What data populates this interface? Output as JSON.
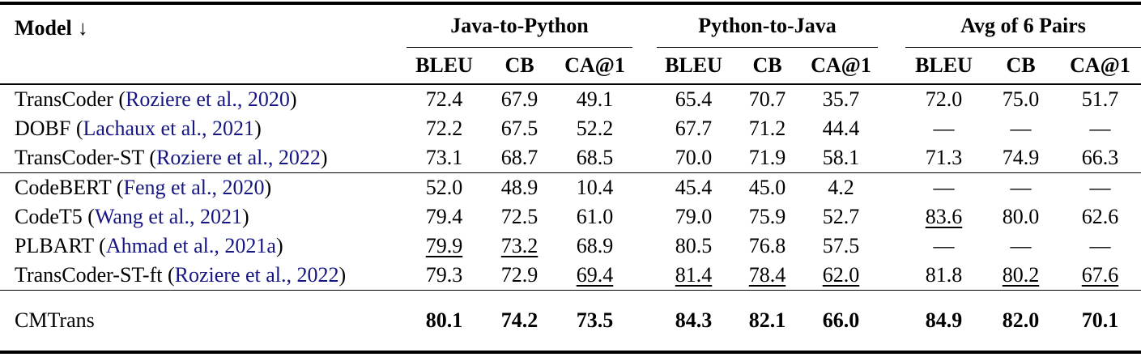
{
  "table": {
    "model_header": {
      "label": "Model",
      "arrow": "↓"
    },
    "groups": [
      {
        "label": "Java-to-Python",
        "metrics": [
          "BLEU",
          "CB",
          "CA@1"
        ]
      },
      {
        "label": "Python-to-Java",
        "metrics": [
          "BLEU",
          "CB",
          "CA@1"
        ]
      },
      {
        "label": "Avg of 6 Pairs",
        "metrics": [
          "BLEU",
          "CB",
          "CA@1"
        ]
      }
    ],
    "rows": [
      {
        "model": "TransCoder",
        "citation": "Roziere et al., 2020",
        "section_start": false,
        "highlight": false,
        "cells": [
          {
            "value": "72.4",
            "underlined": false
          },
          {
            "value": "67.9",
            "underlined": false
          },
          {
            "value": "49.1",
            "underlined": false
          },
          {
            "value": "65.4",
            "underlined": false
          },
          {
            "value": "70.7",
            "underlined": false
          },
          {
            "value": "35.7",
            "underlined": false
          },
          {
            "value": "72.0",
            "underlined": false
          },
          {
            "value": "75.0",
            "underlined": false
          },
          {
            "value": "51.7",
            "underlined": false
          }
        ]
      },
      {
        "model": "DOBF",
        "citation": "Lachaux et al., 2021",
        "section_start": false,
        "highlight": false,
        "cells": [
          {
            "value": "72.2",
            "underlined": false
          },
          {
            "value": "67.5",
            "underlined": false
          },
          {
            "value": "52.2",
            "underlined": false
          },
          {
            "value": "67.7",
            "underlined": false
          },
          {
            "value": "71.2",
            "underlined": false
          },
          {
            "value": "44.4",
            "underlined": false
          },
          {
            "value": "—",
            "underlined": false
          },
          {
            "value": "—",
            "underlined": false
          },
          {
            "value": "—",
            "underlined": false
          }
        ]
      },
      {
        "model": "TransCoder-ST",
        "citation": "Roziere et al., 2022",
        "section_start": false,
        "highlight": false,
        "cells": [
          {
            "value": "73.1",
            "underlined": false
          },
          {
            "value": "68.7",
            "underlined": false
          },
          {
            "value": "68.5",
            "underlined": false
          },
          {
            "value": "70.0",
            "underlined": false
          },
          {
            "value": "71.9",
            "underlined": false
          },
          {
            "value": "58.1",
            "underlined": false
          },
          {
            "value": "71.3",
            "underlined": false
          },
          {
            "value": "74.9",
            "underlined": false
          },
          {
            "value": "66.3",
            "underlined": false
          }
        ]
      },
      {
        "model": "CodeBERT",
        "citation": "Feng et al., 2020",
        "section_start": true,
        "highlight": false,
        "cells": [
          {
            "value": "52.0",
            "underlined": false
          },
          {
            "value": "48.9",
            "underlined": false
          },
          {
            "value": "10.4",
            "underlined": false
          },
          {
            "value": "45.4",
            "underlined": false
          },
          {
            "value": "45.0",
            "underlined": false
          },
          {
            "value": "4.2",
            "underlined": false
          },
          {
            "value": "—",
            "underlined": false
          },
          {
            "value": "—",
            "underlined": false
          },
          {
            "value": "—",
            "underlined": false
          }
        ]
      },
      {
        "model": "CodeT5",
        "citation": "Wang et al., 2021",
        "section_start": false,
        "highlight": false,
        "cells": [
          {
            "value": "79.4",
            "underlined": false
          },
          {
            "value": "72.5",
            "underlined": false
          },
          {
            "value": "61.0",
            "underlined": false
          },
          {
            "value": "79.0",
            "underlined": false
          },
          {
            "value": "75.9",
            "underlined": false
          },
          {
            "value": "52.7",
            "underlined": false
          },
          {
            "value": "83.6",
            "underlined": true
          },
          {
            "value": "80.0",
            "underlined": false
          },
          {
            "value": "62.6",
            "underlined": false
          }
        ]
      },
      {
        "model": "PLBART",
        "citation": "Ahmad et al., 2021a",
        "section_start": false,
        "highlight": false,
        "cells": [
          {
            "value": "79.9",
            "underlined": true
          },
          {
            "value": "73.2",
            "underlined": true
          },
          {
            "value": "68.9",
            "underlined": false
          },
          {
            "value": "80.5",
            "underlined": false
          },
          {
            "value": "76.8",
            "underlined": false
          },
          {
            "value": "57.5",
            "underlined": false
          },
          {
            "value": "—",
            "underlined": false
          },
          {
            "value": "—",
            "underlined": false
          },
          {
            "value": "—",
            "underlined": false
          }
        ]
      },
      {
        "model": "TransCoder-ST-ft",
        "citation": "Roziere et al., 2022",
        "section_start": false,
        "highlight": false,
        "cells": [
          {
            "value": "79.3",
            "underlined": false
          },
          {
            "value": "72.9",
            "underlined": false
          },
          {
            "value": "69.4",
            "underlined": true
          },
          {
            "value": "81.4",
            "underlined": true
          },
          {
            "value": "78.4",
            "underlined": true
          },
          {
            "value": "62.0",
            "underlined": true
          },
          {
            "value": "81.8",
            "underlined": false
          },
          {
            "value": "80.2",
            "underlined": true
          },
          {
            "value": "67.6",
            "underlined": true
          }
        ]
      },
      {
        "model": "CMTrans",
        "citation": null,
        "section_start": true,
        "highlight": true,
        "cells": [
          {
            "value": "80.1",
            "underlined": false
          },
          {
            "value": "74.2",
            "underlined": false
          },
          {
            "value": "73.5",
            "underlined": false
          },
          {
            "value": "84.3",
            "underlined": false
          },
          {
            "value": "82.1",
            "underlined": false
          },
          {
            "value": "66.0",
            "underlined": false
          },
          {
            "value": "84.9",
            "underlined": false
          },
          {
            "value": "82.0",
            "underlined": false
          },
          {
            "value": "70.1",
            "underlined": false
          }
        ]
      }
    ]
  },
  "colors": {
    "text": "#000000",
    "citation_link": "#161682",
    "rule": "#000000",
    "background": "#ffffff"
  }
}
